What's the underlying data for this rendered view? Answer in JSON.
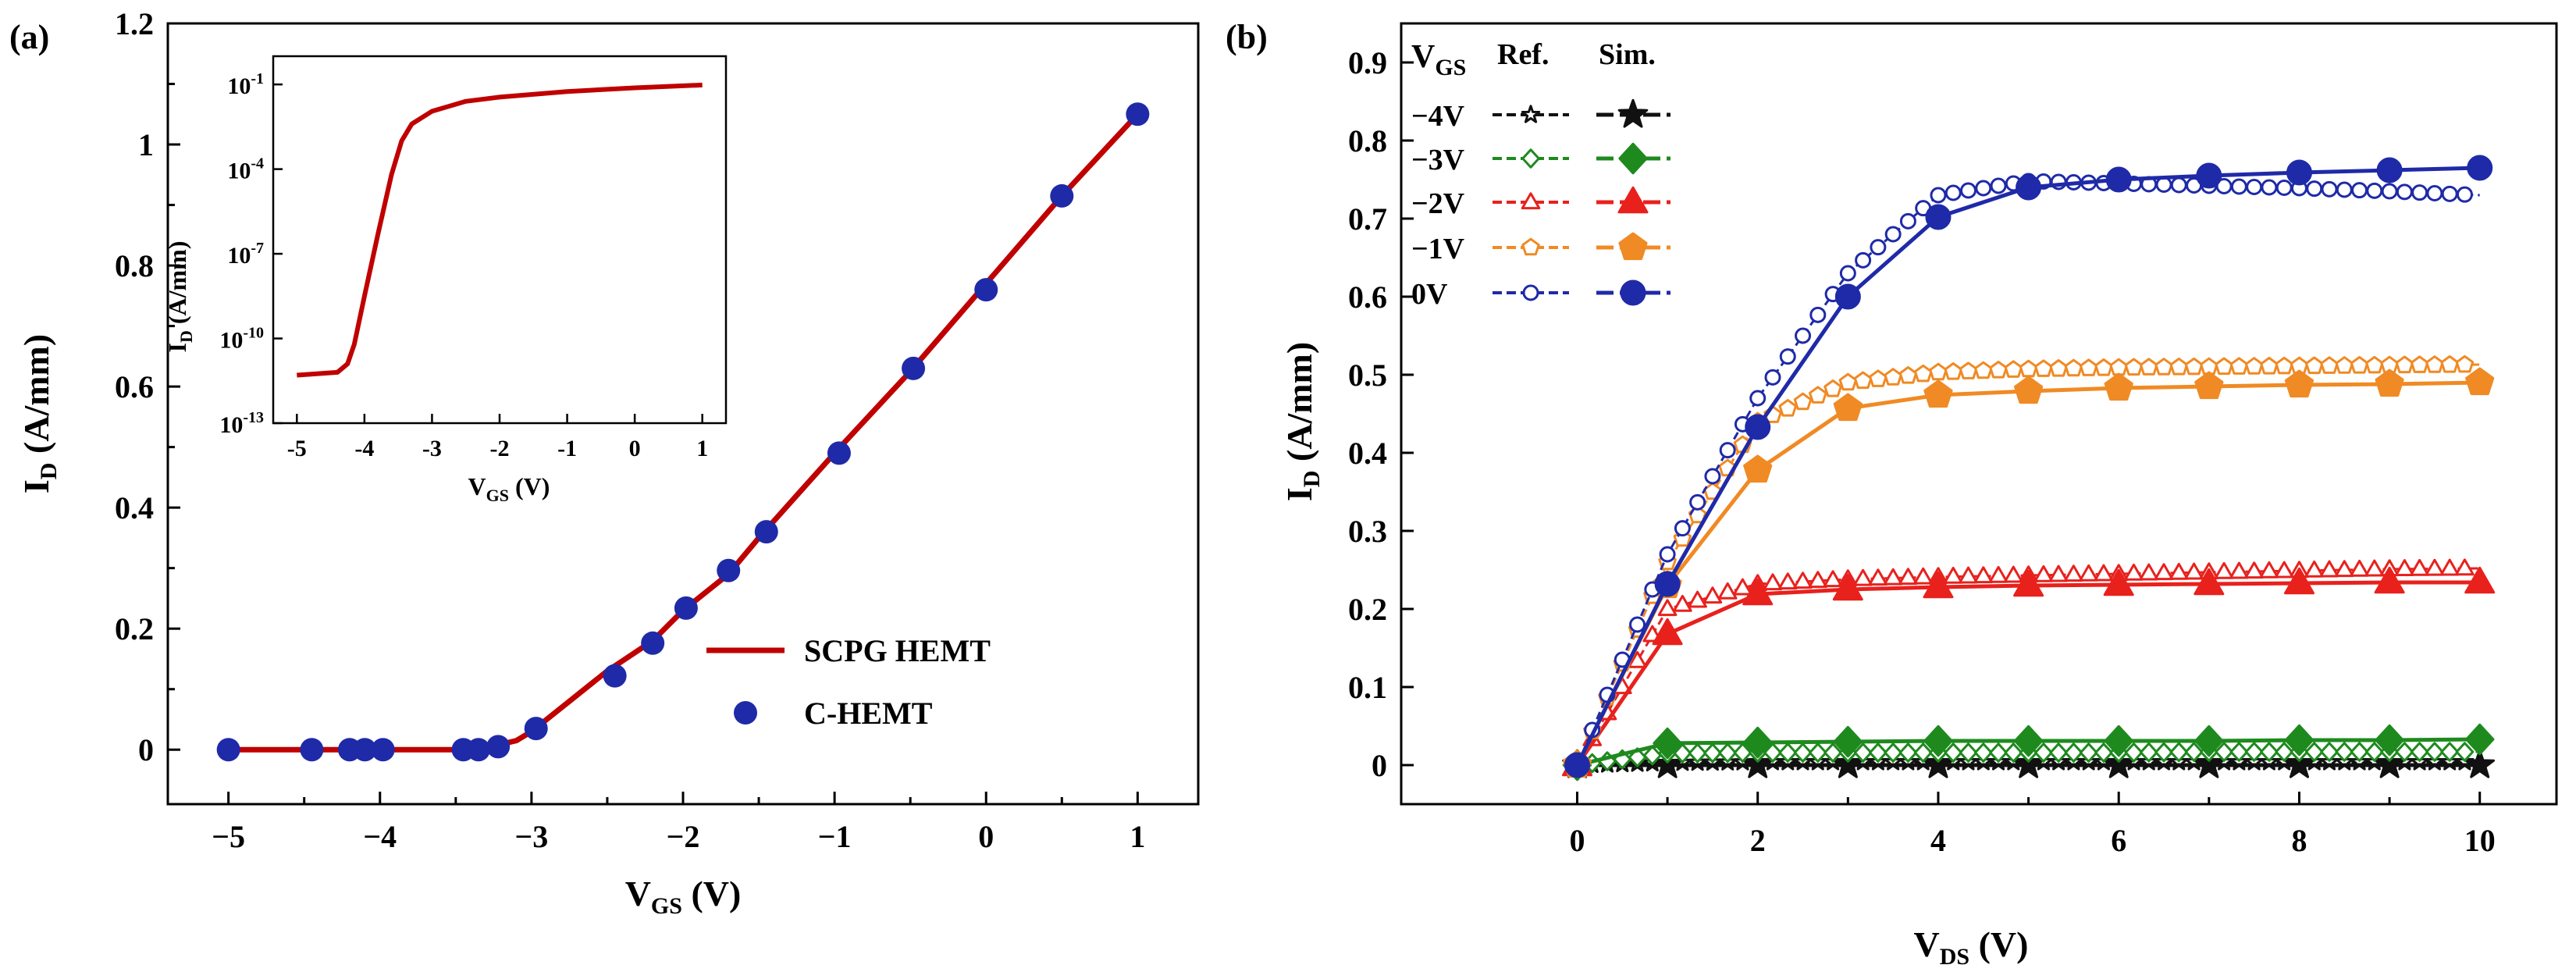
{
  "chart_data": [
    {
      "panel": "(a)",
      "type": "line",
      "xlabel": {
        "main": "V",
        "sub": "GS",
        "unit": " (V)"
      },
      "ylabel": {
        "main": "I",
        "sub": "D",
        "unit": " (A/mm)"
      },
      "xlim": [
        -5.4,
        1.4
      ],
      "ylim": [
        -0.09,
        1.2
      ],
      "xticks": [
        -5,
        -4,
        -3,
        -2,
        -1,
        0,
        1
      ],
      "xtick_labels": [
        "−5",
        "−4",
        "−3",
        "−2",
        "−1",
        "0",
        "1"
      ],
      "yticks": [
        0,
        0.2,
        0.4,
        0.6,
        0.8,
        1,
        1.2
      ],
      "ytick_labels": [
        "0",
        "0.2",
        "0.4",
        "0.6",
        "0.8",
        "1",
        "1.2"
      ],
      "series": [
        {
          "name": "SCPG HEMT",
          "style": "line",
          "color": "#c00000",
          "x": [
            -5,
            -3.5,
            -3.3,
            -3.1,
            -3.0,
            -2.9,
            -2.7,
            -2.5,
            -2.2,
            -2.0,
            -1.7,
            -1.5,
            -1.0,
            -0.5,
            0,
            0.5,
            1.0
          ],
          "y": [
            0,
            0,
            0.003,
            0.015,
            0.03,
            0.05,
            0.09,
            0.13,
            0.18,
            0.23,
            0.29,
            0.35,
            0.49,
            0.625,
            0.77,
            0.915,
            1.05
          ]
        },
        {
          "name": "C-HEMT",
          "style": "marker",
          "color": "#1f2aa8",
          "x": [
            -5,
            -4.45,
            -4.2,
            -4.1,
            -3.98,
            -3.45,
            -3.35,
            -3.22,
            -2.97,
            -2.45,
            -2.2,
            -1.98,
            -1.7,
            -1.45,
            -0.97,
            -0.48,
            0,
            0.5,
            1.0
          ],
          "y": [
            0,
            0,
            0,
            0,
            0,
            0,
            0,
            0.005,
            0.035,
            0.122,
            0.176,
            0.234,
            0.296,
            0.36,
            0.49,
            0.63,
            0.76,
            0.915,
            1.05
          ]
        }
      ],
      "legend": {
        "position": "lower-right",
        "items": [
          "SCPG HEMT",
          "C-HEMT"
        ]
      },
      "inset": {
        "type": "line",
        "yscale": "log",
        "xlabel": {
          "main": "V",
          "sub": "GS",
          "unit": " (V)"
        },
        "ylabel": {
          "main": "I",
          "sub": "D",
          "unit": " (A/mm)"
        },
        "xlim": [
          -5.35,
          1.35
        ],
        "ylim_log10": [
          -13,
          0
        ],
        "xticks": [
          -5,
          -4,
          -3,
          -2,
          -1,
          0,
          1
        ],
        "xtick_labels": [
          "-5",
          "-4",
          "-3",
          "-2",
          "-1",
          "0",
          "1"
        ],
        "yticks_log10": [
          -13,
          -10,
          -7,
          -4,
          -1
        ],
        "ytick_labels": [
          "10",
          "10",
          "10",
          "10",
          "10"
        ],
        "ytick_exponents": [
          "-13",
          "-10",
          "-7",
          "-4",
          "-1"
        ],
        "series": [
          {
            "name": "SCPG HEMT",
            "color": "#c00000",
            "x": [
              -5,
              -4.4,
              -4.25,
              -4.15,
              -4.0,
              -3.8,
              -3.6,
              -3.45,
              -3.3,
              -3.0,
              -2.5,
              -2.0,
              -1.0,
              0,
              1.0
            ],
            "y_log10": [
              -11.3,
              -11.2,
              -10.9,
              -10.2,
              -8.5,
              -6.3,
              -4.2,
              -3.0,
              -2.4,
              -1.95,
              -1.6,
              -1.45,
              -1.25,
              -1.12,
              -1.02
            ]
          }
        ]
      }
    },
    {
      "panel": "(b)",
      "type": "line",
      "xlabel": {
        "main": "V",
        "sub": "DS",
        "unit": " (V)"
      },
      "ylabel": {
        "main": "I",
        "sub": "D",
        "unit": " (A/mm)"
      },
      "xlim": [
        -1.95,
        10.85
      ],
      "ylim": [
        -0.05,
        0.95
      ],
      "xticks": [
        0,
        2,
        4,
        6,
        8,
        10
      ],
      "xtick_labels": [
        "0",
        "2",
        "4",
        "6",
        "8",
        "10"
      ],
      "yticks": [
        0,
        0.1,
        0.2,
        0.3,
        0.4,
        0.5,
        0.6,
        0.7,
        0.8,
        0.9
      ],
      "ytick_labels": [
        "0",
        "0.1",
        "0.2",
        "0.3",
        "0.4",
        "0.5",
        "0.6",
        "0.7",
        "0.8",
        "0.9"
      ],
      "legend": {
        "position": "top-left",
        "header": {
          "main": "V",
          "sub": "GS",
          "ref": "Ref.",
          "sim": "Sim."
        },
        "rows": [
          "−4V",
          "−3V",
          "−2V",
          "−1V",
          "0V"
        ]
      },
      "sim_x": [
        0,
        1,
        2,
        3,
        4,
        5,
        6,
        7,
        8,
        9,
        10
      ],
      "series": [
        {
          "vgs": "−4V",
          "color": "#111111",
          "marker": "star",
          "sim_y": [
            0,
            0,
            0,
            0,
            0,
            0,
            0,
            0,
            0,
            0,
            0
          ],
          "ref_y": [
            0,
            0.003,
            0.004,
            0.004,
            0.004,
            0.004,
            0.004,
            0.004,
            0.004,
            0.004,
            0.004
          ]
        },
        {
          "vgs": "−3V",
          "color": "#1e8a1e",
          "marker": "diamond",
          "sim_y": [
            0,
            0.028,
            0.029,
            0.03,
            0.031,
            0.031,
            0.031,
            0.031,
            0.032,
            0.032,
            0.033
          ],
          "ref_y": [
            0,
            0.015,
            0.016,
            0.016,
            0.016,
            0.016,
            0.016,
            0.017,
            0.017,
            0.017,
            0.017
          ]
        },
        {
          "vgs": "−2V",
          "color": "#e8211d",
          "marker": "triangle",
          "sim_y": [
            0,
            0.168,
            0.219,
            0.225,
            0.228,
            0.23,
            0.231,
            0.232,
            0.233,
            0.234,
            0.234
          ],
          "ref_y": [
            0,
            0.2,
            0.232,
            0.238,
            0.241,
            0.243,
            0.245,
            0.247,
            0.249,
            0.251,
            0.252
          ]
        },
        {
          "vgs": "−1V",
          "color": "#f08a24",
          "marker": "pentagon",
          "sim_y": [
            0,
            0.23,
            0.378,
            0.457,
            0.474,
            0.479,
            0.483,
            0.485,
            0.487,
            0.488,
            0.49
          ],
          "ref_y": [
            0,
            0.26,
            0.44,
            0.49,
            0.503,
            0.507,
            0.509,
            0.51,
            0.511,
            0.512,
            0.513
          ]
        },
        {
          "vgs": "0V",
          "color": "#1f2aa8",
          "marker": "circle",
          "sim_y": [
            0,
            0.232,
            0.433,
            0.6,
            0.702,
            0.74,
            0.75,
            0.755,
            0.759,
            0.762,
            0.765
          ],
          "ref_y": [
            0,
            0.27,
            0.47,
            0.63,
            0.73,
            0.748,
            0.745,
            0.742,
            0.739,
            0.735,
            0.73
          ]
        }
      ]
    }
  ]
}
